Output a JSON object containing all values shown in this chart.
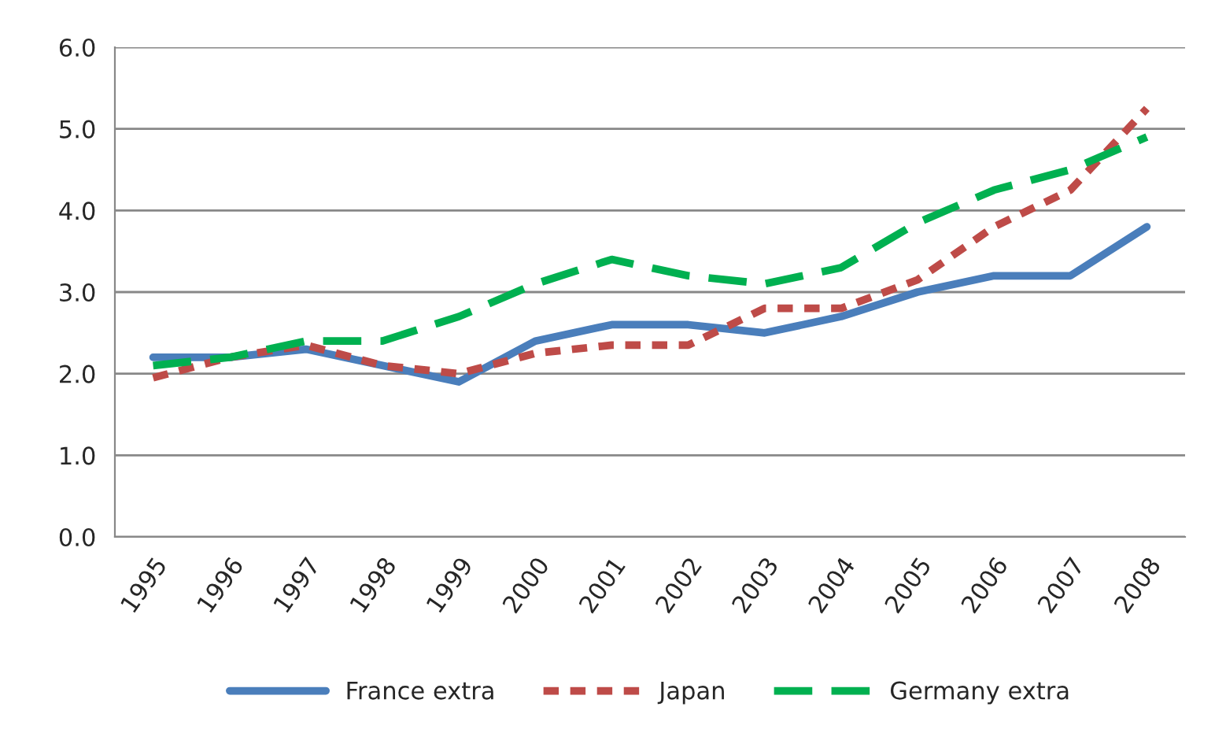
{
  "chart_data": {
    "type": "line",
    "categories": [
      "1995",
      "1996",
      "1997",
      "1998",
      "1999",
      "2000",
      "2001",
      "2002",
      "2003",
      "2004",
      "2005",
      "2006",
      "2007",
      "2008"
    ],
    "series": [
      {
        "name": "France extra",
        "color": "#4a7ebb",
        "line_style": "solid",
        "values": [
          2.2,
          2.2,
          2.3,
          2.1,
          1.9,
          2.4,
          2.6,
          2.6,
          2.5,
          2.7,
          3.0,
          3.2,
          3.2,
          3.8
        ]
      },
      {
        "name": "Japan",
        "color": "#be4b48",
        "line_style": "dotted",
        "values": [
          1.95,
          2.2,
          2.35,
          2.1,
          2.0,
          2.25,
          2.35,
          2.35,
          2.8,
          2.8,
          3.15,
          3.8,
          4.25,
          5.25
        ]
      },
      {
        "name": "Germany extra",
        "color": "#00b050",
        "line_style": "dashed",
        "values": [
          2.1,
          2.2,
          2.4,
          2.4,
          2.7,
          3.1,
          3.4,
          3.2,
          3.1,
          3.3,
          3.85,
          4.25,
          4.5,
          4.9
        ]
      }
    ],
    "ylim": [
      0,
      6
    ],
    "yticks": [
      {
        "value": 0,
        "label": "0.0"
      },
      {
        "value": 1,
        "label": "1.0"
      },
      {
        "value": 2,
        "label": "2.0"
      },
      {
        "value": 3,
        "label": "3.0"
      },
      {
        "value": 4,
        "label": "4.0"
      },
      {
        "value": 5,
        "label": "5.0"
      },
      {
        "value": 6,
        "label": "6.0"
      }
    ],
    "grid": "y",
    "legend": "bottom",
    "marker": "none"
  }
}
